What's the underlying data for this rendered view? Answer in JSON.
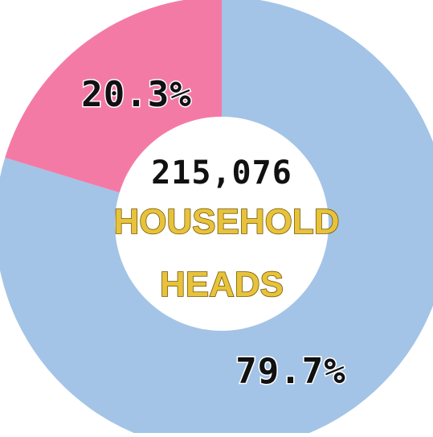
{
  "chart_data": {
    "type": "pie",
    "variant": "donut",
    "center_value": "215,076",
    "center_label_lines": [
      "HOUSEHOLD",
      "HEADS"
    ],
    "slices": [
      {
        "label": "79.7%",
        "value": 79.7,
        "color": "#a3c4e6"
      },
      {
        "label": "20.3%",
        "value": 20.3,
        "color": "#f47aa6"
      }
    ],
    "center_number_color": "#111111",
    "center_label_color": "#e8c23a"
  }
}
